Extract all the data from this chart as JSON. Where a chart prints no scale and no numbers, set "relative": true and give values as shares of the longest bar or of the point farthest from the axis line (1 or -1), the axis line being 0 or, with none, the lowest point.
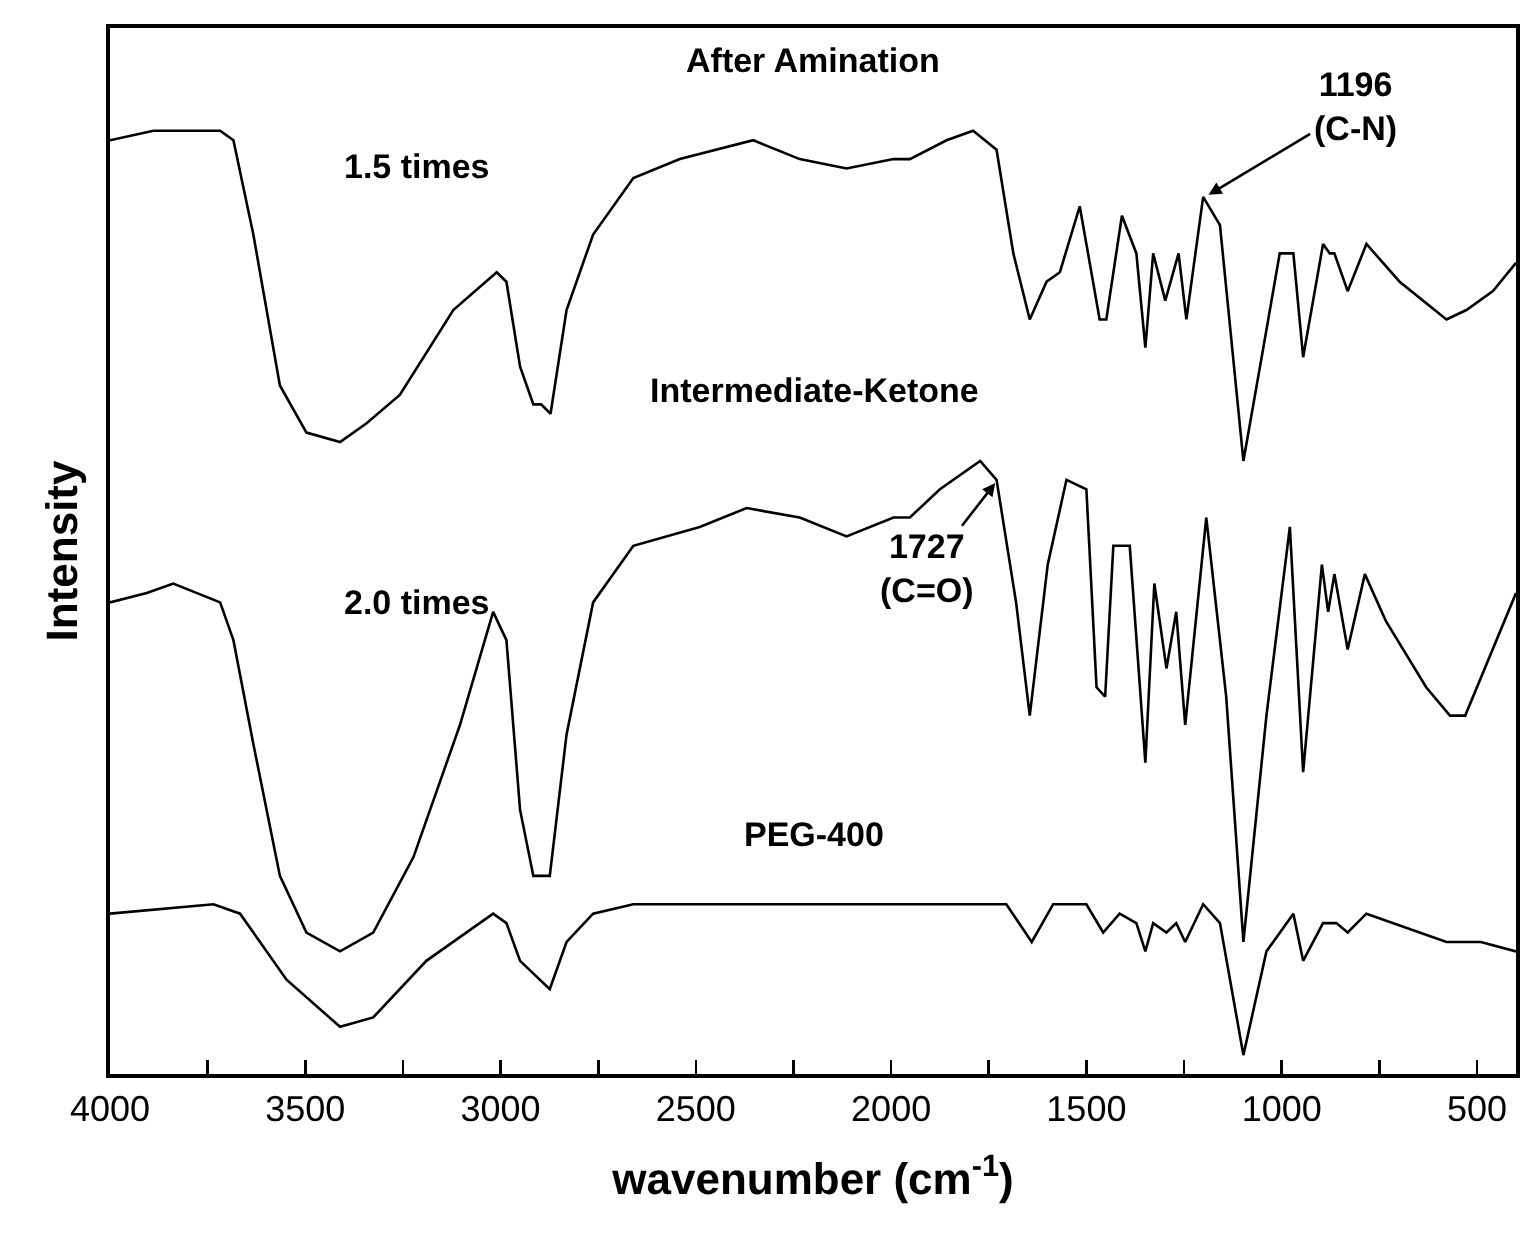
{
  "chart_data": {
    "type": "line",
    "relative": true,
    "xlabel": "wavenumber (cm$^{-1}$)",
    "ylabel": "Intensity",
    "xlim": [
      4000,
      400
    ],
    "xticks": [
      4000,
      {
        "value": 3750,
        "label": null
      },
      3500,
      {
        "value": 3250,
        "label": null
      },
      3000,
      {
        "value": 2750,
        "label": null
      },
      2500,
      {
        "value": 2250,
        "label": null
      },
      2000,
      {
        "value": 1750,
        "label": null
      },
      1500,
      {
        "value": 1250,
        "label": null
      },
      1000,
      {
        "value": 750,
        "label": null
      },
      500
    ],
    "grid": false,
    "legend": false,
    "marker": "none",
    "line_style": "solid",
    "series": [
      {
        "name": "After Amination",
        "color": "#000000",
        "x": [
          4000,
          3889,
          3718,
          3684,
          3633,
          3565,
          3497,
          3411,
          3343,
          3258,
          3121,
          3010,
          2985,
          2950,
          2916,
          2896,
          2872,
          2831,
          2763,
          2660,
          2541,
          2353,
          2234,
          2114,
          1994,
          1952,
          1858,
          1790,
          1730,
          1687,
          1645,
          1602,
          1568,
          1517,
          1466,
          1449,
          1409,
          1372,
          1349,
          1329,
          1298,
          1264,
          1244,
          1201,
          1158,
          1098,
          1047,
          1005,
          970,
          945,
          894,
          877,
          865,
          831,
          783,
          698,
          578,
          527,
          459,
          400
        ],
        "values": [
          0.99,
          1.0,
          1.0,
          0.99,
          0.89,
          0.73,
          0.68,
          0.67,
          0.69,
          0.72,
          0.81,
          0.85,
          0.84,
          0.75,
          0.71,
          0.71,
          0.7,
          0.81,
          0.89,
          0.95,
          0.97,
          0.99,
          0.97,
          0.96,
          0.97,
          0.97,
          0.99,
          1.0,
          0.98,
          0.87,
          0.8,
          0.84,
          0.85,
          0.92,
          0.8,
          0.8,
          0.91,
          0.87,
          0.77,
          0.87,
          0.82,
          0.87,
          0.8,
          0.93,
          0.9,
          0.65,
          0.77,
          0.87,
          0.87,
          0.76,
          0.88,
          0.87,
          0.87,
          0.83,
          0.88,
          0.84,
          0.8,
          0.81,
          0.83,
          0.86
        ]
      },
      {
        "name": "Intermediate-Ketone",
        "color": "#000000",
        "x": [
          4000,
          3906,
          3838,
          3718,
          3684,
          3633,
          3565,
          3497,
          3411,
          3326,
          3223,
          3104,
          3019,
          2985,
          2950,
          2916,
          2874,
          2831,
          2763,
          2660,
          2490,
          2370,
          2234,
          2114,
          1994,
          1952,
          1875,
          1772,
          1730,
          1680,
          1645,
          1599,
          1551,
          1500,
          1474,
          1452,
          1431,
          1389,
          1349,
          1326,
          1295,
          1270,
          1247,
          1193,
          1142,
          1098,
          1039,
          979,
          945,
          897,
          881,
          865,
          831,
          787,
          733,
          630,
          569,
          530,
          400
        ],
        "values": [
          0.5,
          0.51,
          0.52,
          0.5,
          0.46,
          0.35,
          0.21,
          0.15,
          0.13,
          0.15,
          0.23,
          0.37,
          0.49,
          0.46,
          0.28,
          0.21,
          0.21,
          0.36,
          0.5,
          0.56,
          0.58,
          0.6,
          0.59,
          0.57,
          0.59,
          0.59,
          0.62,
          0.65,
          0.63,
          0.5,
          0.38,
          0.54,
          0.63,
          0.62,
          0.41,
          0.4,
          0.56,
          0.56,
          0.33,
          0.52,
          0.43,
          0.49,
          0.37,
          0.59,
          0.4,
          0.14,
          0.38,
          0.58,
          0.32,
          0.54,
          0.49,
          0.53,
          0.45,
          0.53,
          0.48,
          0.41,
          0.38,
          0.38,
          0.51
        ]
      },
      {
        "name": "PEG-400",
        "color": "#000000",
        "x": [
          4000,
          3735,
          3667,
          3548,
          3411,
          3326,
          3190,
          3019,
          2985,
          2950,
          2874,
          2831,
          2763,
          2660,
          2353,
          1994,
          1705,
          1640,
          1585,
          1500,
          1457,
          1415,
          1372,
          1349,
          1329,
          1295,
          1270,
          1247,
          1201,
          1158,
          1098,
          1039,
          970,
          945,
          894,
          860,
          831,
          783,
          578,
          490,
          400
        ],
        "values": [
          0.17,
          0.18,
          0.17,
          0.1,
          0.05,
          0.06,
          0.12,
          0.17,
          0.16,
          0.12,
          0.09,
          0.14,
          0.17,
          0.18,
          0.18,
          0.18,
          0.18,
          0.14,
          0.18,
          0.18,
          0.15,
          0.17,
          0.16,
          0.13,
          0.16,
          0.15,
          0.16,
          0.14,
          0.18,
          0.16,
          0.02,
          0.13,
          0.17,
          0.12,
          0.16,
          0.16,
          0.15,
          0.17,
          0.14,
          0.14,
          0.13
        ]
      }
    ],
    "annotations": [
      "1.5 times",
      "2.0 times",
      {
        "text": "1196\n(C-N)",
        "x": 1196,
        "y": 0.93
      },
      {
        "text": "1727\n(C=O)",
        "x": 1727,
        "y": 0.63
      }
    ]
  }
}
